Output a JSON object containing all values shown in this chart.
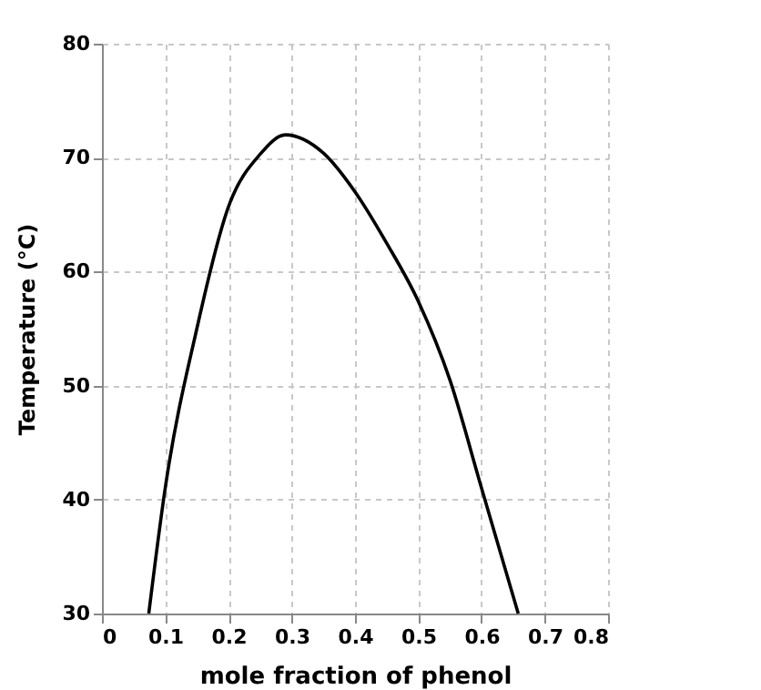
{
  "chart_data": {
    "type": "line",
    "xlabel": "mole fraction of phenol",
    "ylabel": "Temperature (°C)",
    "x": [
      0.074,
      0.1,
      0.15,
      0.2,
      0.25,
      0.29,
      0.35,
      0.4,
      0.45,
      0.5,
      0.55,
      0.6,
      0.658
    ],
    "series": [
      {
        "color": "#000000",
        "values": [
          30,
          41,
          55,
          65.7,
          70.3,
          72,
          70.4,
          67,
          62.5,
          57.4,
          50.5,
          41,
          30
        ]
      }
    ],
    "xlim": [
      0,
      0.8
    ],
    "xticks": [
      {
        "value": 0,
        "label": "0"
      },
      0.1,
      0.2,
      0.3,
      0.4,
      0.5,
      0.6,
      0.7,
      0.8
    ],
    "ylim": [
      30,
      80
    ],
    "yticks": [
      30,
      40,
      50,
      60,
      70,
      80
    ],
    "grid": true,
    "marker": "none",
    "line_style": "solid"
  }
}
